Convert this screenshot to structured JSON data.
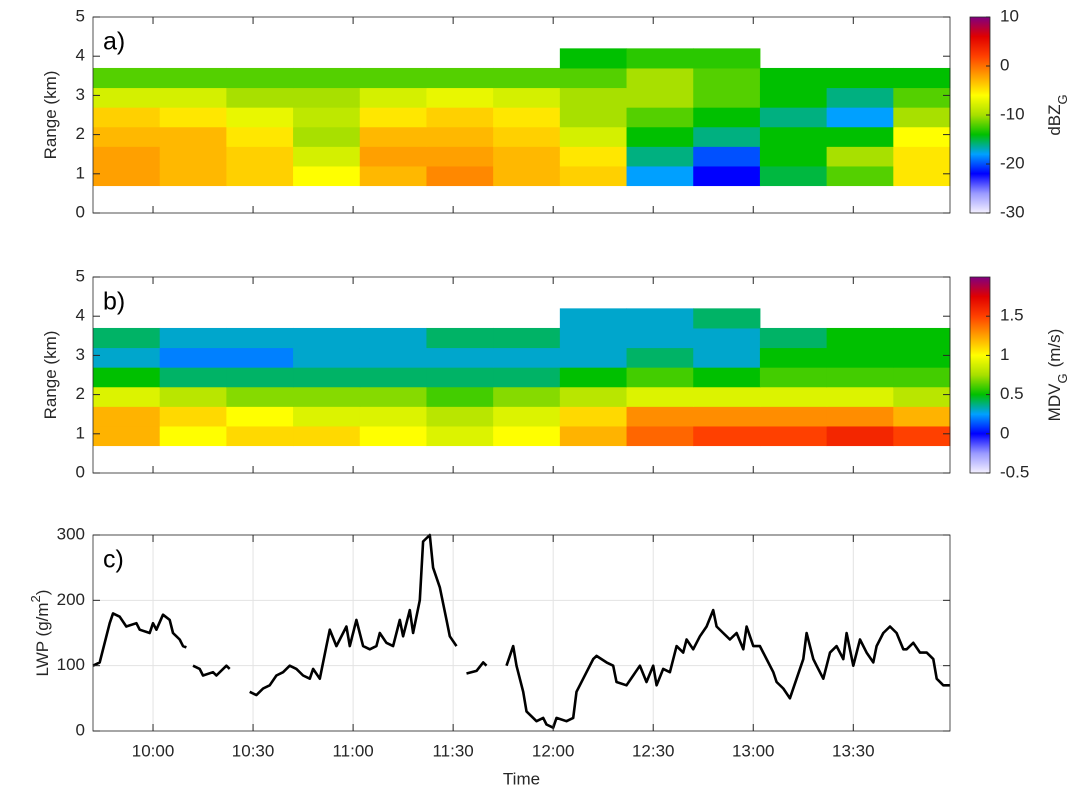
{
  "chart_data": [
    {
      "type": "heatmap",
      "panel_label": "a)",
      "ylabel": "Range (km)",
      "ylim": [
        0,
        5
      ],
      "yticks": [
        0,
        1,
        2,
        3,
        4,
        5
      ],
      "xlim": [
        "09:42",
        "13:59"
      ],
      "x_edges": [
        "09:42",
        "10:02",
        "10:22",
        "10:42",
        "11:02",
        "11:22",
        "11:42",
        "12:02",
        "12:22",
        "12:42",
        "13:02",
        "13:22",
        "13:42",
        "13:59"
      ],
      "y_edges": [
        0.7,
        1.2,
        1.7,
        2.2,
        2.7,
        3.2,
        3.7,
        4.2
      ],
      "z": [
        [
          -2,
          -3,
          -4,
          -6,
          -3,
          -1,
          -3,
          -4,
          -18,
          -22,
          -15,
          -12,
          -5
        ],
        [
          -2,
          -3,
          -4,
          -8,
          -2,
          -2,
          -3,
          -5,
          -16,
          -20,
          -14,
          -10,
          -5
        ],
        [
          -3,
          -3,
          -5,
          -10,
          -3,
          -3,
          -4,
          -8,
          -14,
          -16,
          -14,
          -14,
          -6
        ],
        [
          -4,
          -5,
          -7,
          -9,
          -5,
          -4,
          -5,
          -10,
          -12,
          -14,
          -16,
          -18,
          -10
        ],
        [
          -8,
          -8,
          -10,
          -10,
          -8,
          -7,
          -8,
          -10,
          -10,
          -12,
          -14,
          -16,
          -12
        ],
        [
          -12,
          -12,
          -12,
          -12,
          -12,
          -12,
          -12,
          -12,
          -10,
          -12,
          -14,
          -14,
          -14
        ],
        [
          null,
          null,
          null,
          null,
          null,
          null,
          null,
          -14,
          -13,
          -13,
          null,
          null,
          null
        ]
      ],
      "zlim": [
        -30,
        10
      ],
      "zticks": [
        -30,
        -20,
        -10,
        0,
        10
      ],
      "colorbar_label": "dBZ",
      "colorbar_label_sub": "G",
      "colormap": [
        "#f4f0ff",
        "#9a9aff",
        "#0000ff",
        "#00a0ff",
        "#00c000",
        "#a8e000",
        "#ffff00",
        "#ffa000",
        "#ff4000",
        "#e00000",
        "#800080"
      ]
    },
    {
      "type": "heatmap",
      "panel_label": "b)",
      "ylabel": "Range (km)",
      "ylim": [
        0,
        5
      ],
      "yticks": [
        0,
        1,
        2,
        3,
        4,
        5
      ],
      "xlim": [
        "09:42",
        "13:59"
      ],
      "x_edges": [
        "09:42",
        "10:02",
        "10:22",
        "10:42",
        "11:02",
        "11:22",
        "11:42",
        "12:02",
        "12:22",
        "12:42",
        "13:02",
        "13:22",
        "13:42",
        "13:59"
      ],
      "y_edges": [
        0.7,
        1.2,
        1.7,
        2.2,
        2.7,
        3.2,
        3.7,
        4.2
      ],
      "z": [
        [
          1.2,
          1.0,
          1.1,
          1.1,
          1.0,
          0.9,
          1.0,
          1.2,
          1.4,
          1.5,
          1.5,
          1.6,
          1.5
        ],
        [
          1.2,
          1.1,
          1.0,
          0.9,
          0.9,
          0.8,
          0.9,
          1.1,
          1.3,
          1.3,
          1.3,
          1.3,
          1.2
        ],
        [
          0.9,
          0.8,
          0.7,
          0.7,
          0.7,
          0.6,
          0.7,
          0.8,
          0.9,
          0.9,
          0.9,
          0.9,
          0.8
        ],
        [
          0.5,
          0.4,
          0.4,
          0.4,
          0.4,
          0.4,
          0.4,
          0.5,
          0.6,
          0.5,
          0.6,
          0.6,
          0.6
        ],
        [
          0.3,
          0.2,
          0.2,
          0.3,
          0.3,
          0.3,
          0.3,
          0.3,
          0.4,
          0.3,
          0.5,
          0.5,
          0.5
        ],
        [
          0.4,
          0.3,
          0.3,
          0.3,
          0.3,
          0.4,
          0.4,
          0.3,
          0.3,
          0.3,
          0.4,
          0.5,
          0.5
        ],
        [
          null,
          null,
          null,
          null,
          null,
          null,
          null,
          0.3,
          0.3,
          0.4,
          null,
          null,
          null
        ]
      ],
      "zlim": [
        -0.5,
        2
      ],
      "zticks": [
        -0.5,
        0,
        0.5,
        1,
        1.5
      ],
      "colorbar_label": "MDV",
      "colorbar_label_sub": "G",
      "colorbar_label_unit": "(m/s)",
      "colormap": [
        "#f4f0ff",
        "#9a9aff",
        "#0000ff",
        "#00a0ff",
        "#00c000",
        "#a8e000",
        "#ffff00",
        "#ffa000",
        "#ff4000",
        "#e00000",
        "#800080"
      ]
    },
    {
      "type": "line",
      "panel_label": "c)",
      "ylabel": "LWP (g/m",
      "ylabel_sup": "2",
      "ylabel_end": ")",
      "xlabel": "Time",
      "ylim": [
        0,
        300
      ],
      "yticks": [
        0,
        100,
        200,
        300
      ],
      "grid": true,
      "xlim": [
        "09:42",
        "13:59"
      ],
      "xticks": [
        "10:00",
        "10:30",
        "11:00",
        "11:30",
        "12:00",
        "12:30",
        "13:00",
        "13:30"
      ],
      "x": [
        "09:42",
        "09:44",
        "09:47",
        "09:48",
        "09:50",
        "09:52",
        "09:55",
        "09:56",
        "09:59",
        "10:00",
        "10:01",
        "10:03",
        "10:05",
        "10:06",
        "10:08",
        "10:09",
        "10:10",
        "10:11",
        "10:12",
        "10:14",
        "10:15",
        "10:18",
        "10:19",
        "10:22",
        "10:23",
        "10:26",
        "10:29",
        "10:31",
        "10:33",
        "10:35",
        "10:37",
        "10:39",
        "10:41",
        "10:43",
        "10:45",
        "10:47",
        "10:48",
        "10:50",
        "10:52",
        "10:53",
        "10:55",
        "10:56",
        "10:58",
        "10:59",
        "11:01",
        "11:03",
        "11:05",
        "11:07",
        "11:08",
        "11:10",
        "11:12",
        "11:14",
        "11:15",
        "11:17",
        "11:18",
        "11:20",
        "11:21",
        "11:23",
        "11:24",
        "11:26",
        "11:28",
        "11:29",
        "11:31",
        "11:32",
        "11:34",
        "11:37",
        "11:39",
        "11:40",
        "11:43",
        "11:46",
        "11:48",
        "11:49",
        "11:51",
        "11:52",
        "11:55",
        "11:57",
        "11:58",
        "12:00",
        "12:01",
        "12:04",
        "12:06",
        "12:07",
        "12:10",
        "12:12",
        "12:13",
        "12:16",
        "12:18",
        "12:19",
        "12:22",
        "12:24",
        "12:26",
        "12:28",
        "12:30",
        "12:31",
        "12:33",
        "12:35",
        "12:37",
        "12:39",
        "12:40",
        "12:42",
        "12:44",
        "12:46",
        "12:48",
        "12:49",
        "12:51",
        "12:53",
        "12:55",
        "12:57",
        "12:58",
        "13:00",
        "13:02",
        "13:04",
        "13:06",
        "13:07",
        "13:09",
        "13:11",
        "13:13",
        "13:15",
        "13:16",
        "13:18",
        "13:19",
        "13:21",
        "13:23",
        "13:25",
        "13:27",
        "13:28",
        "13:30",
        "13:32",
        "13:34",
        "13:36",
        "13:37",
        "13:39",
        "13:41",
        "13:43",
        "13:45",
        "13:46",
        "13:48",
        "13:50",
        "13:52",
        "13:54",
        "13:55",
        "13:57",
        "13:59"
      ],
      "series": [
        {
          "color": "#000000",
          "values": [
            100,
            105,
            165,
            180,
            175,
            160,
            165,
            155,
            150,
            165,
            155,
            178,
            170,
            150,
            140,
            130,
            128,
            null,
            100,
            95,
            85,
            90,
            85,
            100,
            95,
            null,
            60,
            55,
            65,
            70,
            85,
            90,
            100,
            95,
            85,
            80,
            95,
            80,
            130,
            155,
            130,
            140,
            160,
            130,
            170,
            130,
            125,
            130,
            150,
            135,
            130,
            170,
            145,
            185,
            150,
            200,
            290,
            300,
            250,
            220,
            170,
            145,
            130,
            null,
            88,
            92,
            105,
            100,
            null,
            100,
            130,
            100,
            60,
            30,
            15,
            20,
            10,
            5,
            20,
            15,
            20,
            60,
            90,
            110,
            115,
            105,
            100,
            75,
            70,
            85,
            100,
            75,
            100,
            70,
            95,
            90,
            130,
            120,
            140,
            125,
            145,
            160,
            185,
            160,
            150,
            140,
            150,
            125,
            160,
            130,
            130,
            110,
            90,
            75,
            65,
            50,
            80,
            110,
            150,
            110,
            100,
            80,
            120,
            130,
            110,
            150,
            100,
            140,
            120,
            105,
            130,
            150,
            160,
            150,
            125,
            125,
            135,
            120,
            120,
            110,
            80,
            70,
            70
          ]
        }
      ]
    }
  ]
}
